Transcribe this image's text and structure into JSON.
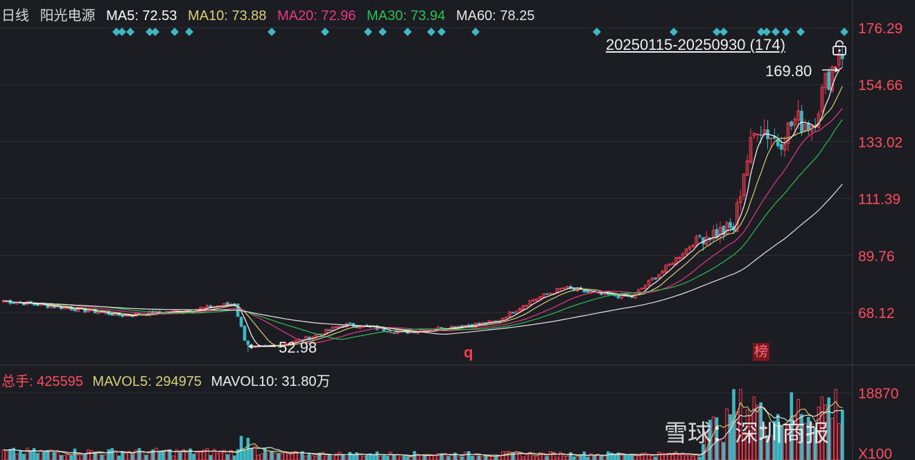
{
  "header": {
    "period": "日线",
    "stock_name": "阳光电源",
    "ma_items": [
      {
        "label": "MA5: 72.53",
        "color": "#ffffff"
      },
      {
        "label": "MA10: 73.88",
        "color": "#d8d17a"
      },
      {
        "label": "MA20: 72.96",
        "color": "#e8388a"
      },
      {
        "label": "MA30: 73.94",
        "color": "#2fbf52"
      },
      {
        "label": "MA60: 78.25",
        "color": "#e6e6e6"
      }
    ]
  },
  "range_label": "20250115-20250930 (174)",
  "annotations": {
    "high_label": "169.80",
    "low_label": "52.98",
    "q_marker": "q",
    "bang_marker": "榜"
  },
  "volume_header": {
    "total": "总手: 425595",
    "mavol5": "MAVOL5: 294975",
    "mavol10": "MAVOL10: 31.80万"
  },
  "watermark": "雪球：深圳商报",
  "colors": {
    "up": "#ff3b50",
    "down": "#3fb8c4",
    "background": "#1b1d23",
    "grid": "#2e3038",
    "axis_text": "#ff4d5e",
    "ma5": "#ffffff",
    "ma10": "#d8d17a",
    "ma20": "#e8388a",
    "ma30": "#2fbf52",
    "ma60": "#e6e6e6",
    "marker": "#3fb8c4"
  },
  "chart_data": [
    {
      "type": "candlestick",
      "title": "",
      "x_range": [
        "20250115",
        "20250930"
      ],
      "bar_count": 174,
      "ylim": [
        50,
        176.29
      ],
      "y_ticks": [
        176.29,
        154.66,
        133.02,
        111.39,
        89.76,
        68.12
      ],
      "y_tick_labels": [
        "176.29",
        "154.66",
        "133.02",
        "111.39",
        "89.76",
        "68.12"
      ],
      "high": 169.8,
      "low": 52.98,
      "anchors": [
        [
          0,
          72.5
        ],
        [
          18,
          70.0
        ],
        [
          35,
          67.0
        ],
        [
          55,
          69.0
        ],
        [
          68,
          71.5
        ],
        [
          71,
          58.0
        ],
        [
          73,
          54.5
        ],
        [
          80,
          55.5
        ],
        [
          90,
          58.5
        ],
        [
          100,
          63.5
        ],
        [
          105,
          63.0
        ],
        [
          118,
          60.5
        ],
        [
          130,
          62.5
        ],
        [
          145,
          64.5
        ],
        [
          155,
          72.5
        ],
        [
          165,
          77.5
        ],
        [
          175,
          75.0
        ],
        [
          185,
          74.0
        ],
        [
          195,
          85.0
        ],
        [
          205,
          97.0
        ],
        [
          215,
          100.0
        ],
        [
          218,
          122.0
        ],
        [
          222,
          140.0
        ],
        [
          228,
          133.0
        ],
        [
          233,
          141.0
        ],
        [
          238,
          140.0
        ],
        [
          242,
          155.0
        ],
        [
          245,
          164.0
        ],
        [
          247,
          166.0
        ]
      ],
      "series": [
        {
          "name": "MA5",
          "final": 72.53
        },
        {
          "name": "MA10",
          "final": 73.88
        },
        {
          "name": "MA20",
          "final": 72.96
        },
        {
          "name": "MA30",
          "final": 73.94
        },
        {
          "name": "MA60",
          "final": 78.25
        }
      ]
    },
    {
      "type": "bar",
      "title": "",
      "y_unit": "X100",
      "y_ticks": [
        18870
      ],
      "y_tick_labels": [
        "18870",
        "X100"
      ],
      "ylim": [
        0,
        19800
      ],
      "total": 425595,
      "mavol5": 294975,
      "mavol10": 318000
    }
  ]
}
